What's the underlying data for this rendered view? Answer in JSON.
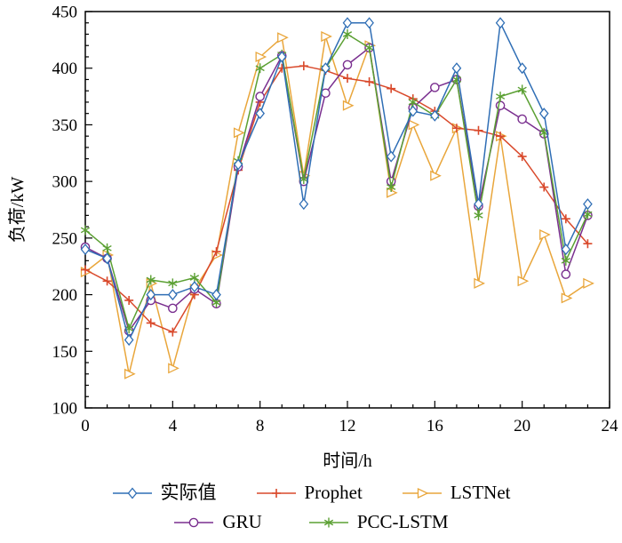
{
  "chart_data": {
    "type": "line",
    "title": "",
    "xlabel": "时间/h",
    "ylabel": "负荷/kW",
    "xlim": [
      0,
      24
    ],
    "ylim": [
      100,
      450
    ],
    "xticks": [
      0,
      4,
      8,
      12,
      16,
      20,
      24
    ],
    "yticks": [
      100,
      150,
      200,
      250,
      300,
      350,
      400,
      450
    ],
    "x_minor_step": 1,
    "y_minor_step": 10,
    "grid": false,
    "legend_position": "bottom",
    "frame_color": "#000000",
    "x": [
      0,
      1,
      2,
      3,
      4,
      5,
      6,
      7,
      8,
      9,
      10,
      11,
      12,
      13,
      14,
      15,
      16,
      17,
      18,
      19,
      20,
      21,
      22,
      23
    ],
    "series": [
      {
        "key": "actual",
        "name": "实际值",
        "color": "#2f6eb5",
        "marker": "diamond",
        "values": [
          240,
          232,
          160,
          200,
          200,
          207,
          200,
          315,
          360,
          410,
          280,
          400,
          440,
          440,
          322,
          362,
          358,
          400,
          280,
          440,
          400,
          360,
          240,
          280
        ]
      },
      {
        "key": "prophet",
        "name": "Prophet",
        "color": "#d9492b",
        "marker": "plus",
        "values": [
          222,
          212,
          195,
          175,
          167,
          200,
          238,
          310,
          370,
          400,
          402,
          398,
          391,
          388,
          382,
          373,
          362,
          347,
          345,
          340,
          322,
          295,
          267,
          245
        ]
      },
      {
        "key": "lstnet",
        "name": "LSTNet",
        "color": "#e9a63b",
        "marker": "triangle-right",
        "values": [
          220,
          235,
          130,
          210,
          135,
          205,
          235,
          343,
          410,
          427,
          305,
          428,
          367,
          420,
          290,
          350,
          305,
          347,
          210,
          340,
          212,
          253,
          197,
          210
        ]
      },
      {
        "key": "gru",
        "name": "GRU",
        "color": "#7a2f8f",
        "marker": "circle",
        "values": [
          242,
          232,
          168,
          195,
          188,
          205,
          192,
          313,
          375,
          411,
          300,
          378,
          403,
          418,
          300,
          365,
          383,
          390,
          278,
          367,
          355,
          342,
          218,
          270
        ]
      },
      {
        "key": "pcc-lstm",
        "name": "PCC-LSTM",
        "color": "#5ba033",
        "marker": "asterisk",
        "values": [
          257,
          241,
          170,
          213,
          210,
          215,
          193,
          318,
          400,
          412,
          302,
          400,
          430,
          418,
          295,
          370,
          358,
          390,
          270,
          375,
          381,
          343,
          230,
          271
        ]
      }
    ]
  }
}
